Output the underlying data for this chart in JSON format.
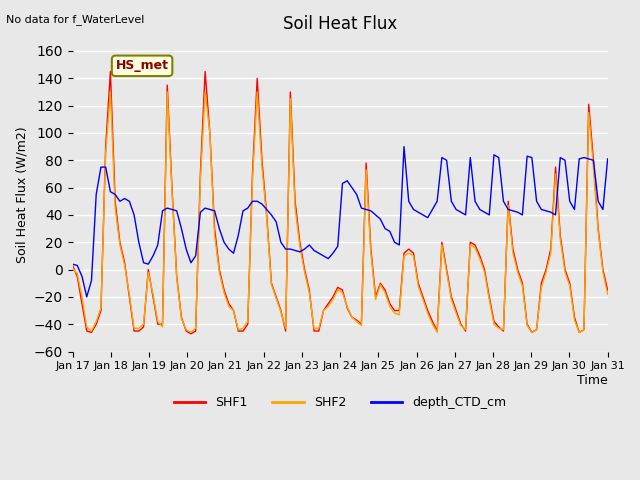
{
  "title": "Soil Heat Flux",
  "ylabel": "Soil Heat Flux (W/m2)",
  "xlabel": "Time",
  "note": "No data for f_WaterLevel",
  "site_label": "HS_met",
  "ylim": [
    -60,
    170
  ],
  "yticks": [
    -60,
    -40,
    -20,
    0,
    20,
    40,
    60,
    80,
    100,
    120,
    140,
    160
  ],
  "xtick_labels": [
    "Jan 17",
    "Jan 18",
    "Jan 19",
    "Jan 20",
    "Jan 21",
    "Jan 22",
    "Jan 23",
    "Jan 24",
    "Jan 25",
    "Jan 26",
    "Jan 27",
    "Jan 28",
    "Jan 29",
    "Jan 30",
    "Jan 31"
  ],
  "background_color": "#e8e8e8",
  "plot_bg_color": "#e8e8e8",
  "legend_entries": [
    "SHF1",
    "SHF2",
    "depth_CTD_cm"
  ],
  "line_colors": [
    "#ff0000",
    "#ffa500",
    "#0000ff"
  ],
  "shf1": [
    3,
    -5,
    -25,
    -45,
    -46,
    -40,
    -30,
    90,
    145,
    50,
    20,
    5,
    -20,
    -45,
    -45,
    -42,
    0,
    -20,
    -40,
    -40,
    135,
    60,
    -5,
    -35,
    -45,
    -47,
    -45,
    70,
    145,
    100,
    30,
    0,
    -15,
    -25,
    -30,
    -45,
    -45,
    -40,
    70,
    140,
    80,
    40,
    -10,
    -20,
    -30,
    -45,
    130,
    50,
    20,
    0,
    -15,
    -45,
    -45,
    -30,
    -25,
    -20,
    -13,
    -15,
    -28,
    -35,
    -37,
    -40,
    78,
    15,
    -20,
    -10,
    -15,
    -25,
    -30,
    -30,
    12,
    15,
    12,
    -10,
    -20,
    -30,
    -38,
    -45,
    20,
    0,
    -20,
    -30,
    -40,
    -45,
    20,
    18,
    10,
    0,
    -20,
    -38,
    -42,
    -45,
    50,
    15,
    0,
    -10,
    -40,
    -46,
    -44,
    -10,
    0,
    15,
    75,
    25,
    0,
    -10,
    -35,
    -46,
    -44,
    121,
    80,
    30,
    0,
    -15
  ],
  "shf2": [
    1,
    -3,
    -20,
    -42,
    -45,
    -38,
    -28,
    85,
    130,
    45,
    18,
    3,
    -18,
    -43,
    -43,
    -40,
    -2,
    -18,
    -38,
    -42,
    130,
    58,
    -6,
    -36,
    -44,
    -46,
    -43,
    65,
    130,
    100,
    25,
    -2,
    -17,
    -27,
    -30,
    -44,
    -43,
    -38,
    65,
    130,
    75,
    38,
    -11,
    -21,
    -31,
    -43,
    125,
    45,
    17,
    -2,
    -17,
    -43,
    -43,
    -30,
    -27,
    -22,
    -15,
    -17,
    -27,
    -35,
    -38,
    -41,
    73,
    12,
    -22,
    -11,
    -17,
    -27,
    -32,
    -33,
    10,
    12,
    10,
    -12,
    -22,
    -32,
    -40,
    -46,
    18,
    -2,
    -22,
    -32,
    -41,
    -44,
    18,
    16,
    8,
    -2,
    -22,
    -40,
    -43,
    -44,
    47,
    12,
    -2,
    -12,
    -41,
    -46,
    -44,
    -13,
    -2,
    12,
    70,
    22,
    -2,
    -12,
    -37,
    -46,
    -44,
    115,
    75,
    28,
    -2,
    -18
  ],
  "ctd": [
    4,
    3,
    -5,
    -20,
    -8,
    55,
    75,
    75,
    57,
    55,
    50,
    52,
    50,
    40,
    20,
    5,
    4,
    10,
    18,
    43,
    45,
    44,
    43,
    30,
    15,
    5,
    10,
    42,
    45,
    44,
    43,
    30,
    20,
    15,
    12,
    25,
    43,
    45,
    50,
    50,
    48,
    44,
    40,
    35,
    20,
    15,
    15,
    14,
    13,
    15,
    18,
    14,
    12,
    10,
    8,
    12,
    17,
    63,
    65,
    60,
    55,
    45,
    44,
    43,
    40,
    37,
    30,
    28,
    20,
    18,
    90,
    50,
    44,
    42,
    40,
    38,
    44,
    50,
    82,
    80,
    50,
    44,
    42,
    40,
    82,
    50,
    44,
    42,
    40,
    84,
    82,
    50,
    44,
    43,
    42,
    40,
    83,
    82,
    50,
    44,
    43,
    42,
    40,
    82,
    80,
    50,
    44,
    81,
    82,
    81,
    80,
    50,
    44,
    81
  ]
}
